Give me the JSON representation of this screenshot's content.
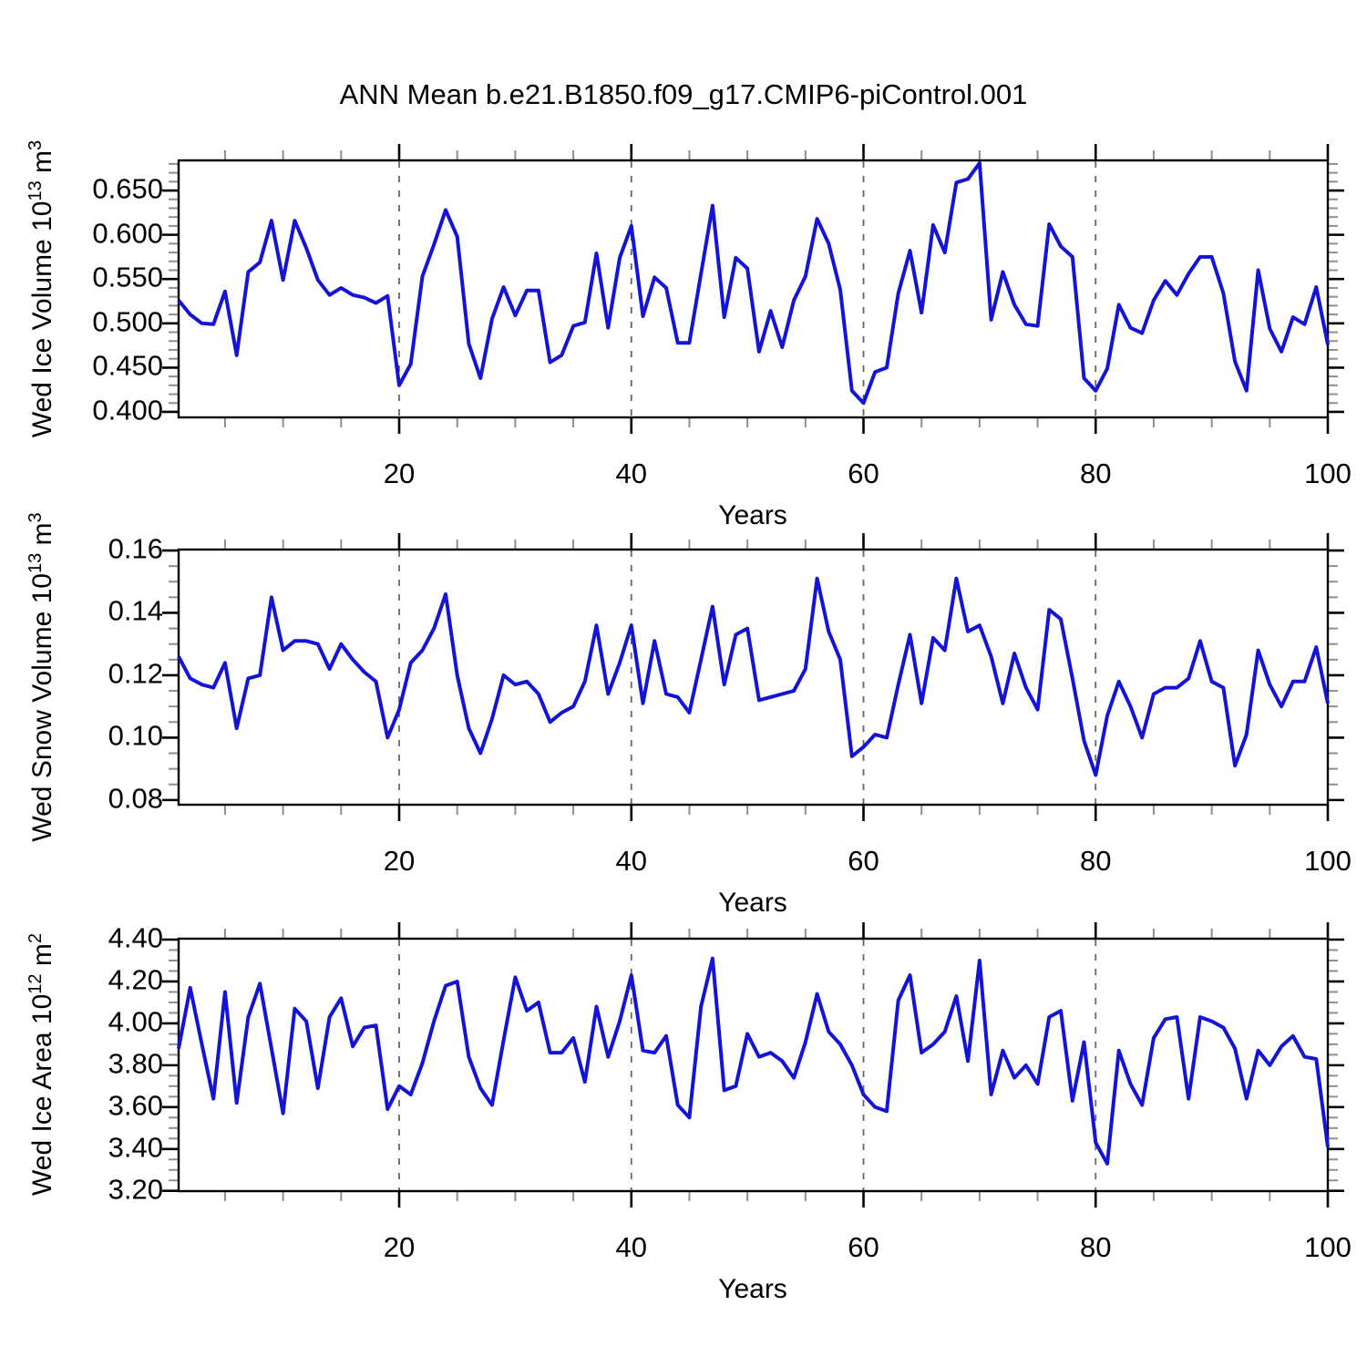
{
  "title": "ANN Mean b.e21.B1850.f09_g17.CMIP6-piControl.001",
  "line_color": "#1414d8",
  "frame_color": "#000000",
  "minor_tick_color": "#8f8f8f",
  "grid_color": "#666666",
  "chart_data": [
    {
      "type": "line",
      "title": "",
      "ylabel_base": "Wed Ice Volume 10",
      "ylabel_exp": "13",
      "ylabel_unit": " m",
      "ylabel_unit_exp": "3",
      "xlabel": "Years",
      "xlim": [
        1,
        100
      ],
      "ylim": [
        0.3938,
        0.684
      ],
      "x_major_ticks": [
        20,
        40,
        60,
        80,
        100
      ],
      "x_tick_labels": [
        "20",
        "40",
        "60",
        "80",
        "100"
      ],
      "x_minor_step": 5,
      "grid_x": [
        20,
        40,
        60,
        80
      ],
      "y_major_ticks": [
        0.4,
        0.45,
        0.5,
        0.55,
        0.6,
        0.65
      ],
      "y_tick_labels": [
        "0.400",
        "0.450",
        "0.500",
        "0.550",
        "0.600",
        "0.650"
      ],
      "y_minor_step": 0.01,
      "x_start": 1,
      "values": [
        0.526,
        0.51,
        0.5,
        0.499,
        0.536,
        0.464,
        0.558,
        0.569,
        0.616,
        0.549,
        0.616,
        0.585,
        0.549,
        0.532,
        0.54,
        0.532,
        0.529,
        0.523,
        0.531,
        0.43,
        0.454,
        0.553,
        0.589,
        0.628,
        0.598,
        0.477,
        0.438,
        0.505,
        0.541,
        0.509,
        0.537,
        0.537,
        0.456,
        0.464,
        0.497,
        0.501,
        0.579,
        0.495,
        0.574,
        0.61,
        0.508,
        0.552,
        0.54,
        0.478,
        0.478,
        0.556,
        0.633,
        0.507,
        0.574,
        0.562,
        0.468,
        0.514,
        0.473,
        0.526,
        0.553,
        0.618,
        0.59,
        0.538,
        0.424,
        0.41,
        0.445,
        0.45,
        0.534,
        0.582,
        0.512,
        0.611,
        0.58,
        0.659,
        0.663,
        0.681,
        0.504,
        0.558,
        0.521,
        0.499,
        0.497,
        0.612,
        0.587,
        0.575,
        0.438,
        0.424,
        0.449,
        0.521,
        0.495,
        0.489,
        0.526,
        0.548,
        0.532,
        0.556,
        0.575,
        0.575,
        0.534,
        0.457,
        0.424,
        0.56,
        0.494,
        0.468,
        0.507,
        0.499,
        0.541,
        0.476
      ]
    },
    {
      "type": "line",
      "title": "",
      "ylabel_base": "Wed Snow Volume 10",
      "ylabel_exp": "13",
      "ylabel_unit": " m",
      "ylabel_unit_exp": "3",
      "xlabel": "Years",
      "xlim": [
        1,
        100
      ],
      "ylim": [
        0.0785,
        0.1603
      ],
      "x_major_ticks": [
        20,
        40,
        60,
        80,
        100
      ],
      "x_tick_labels": [
        "20",
        "40",
        "60",
        "80",
        "100"
      ],
      "x_minor_step": 5,
      "grid_x": [
        20,
        40,
        60,
        80
      ],
      "y_major_ticks": [
        0.08,
        0.1,
        0.12,
        0.14,
        0.16
      ],
      "y_tick_labels": [
        "0.08",
        "0.10",
        "0.12",
        "0.14",
        "0.16"
      ],
      "y_minor_step": 0.005,
      "x_start": 1,
      "values": [
        0.126,
        0.119,
        0.117,
        0.116,
        0.124,
        0.103,
        0.119,
        0.12,
        0.145,
        0.128,
        0.131,
        0.131,
        0.13,
        0.122,
        0.13,
        0.125,
        0.121,
        0.118,
        0.1,
        0.109,
        0.124,
        0.128,
        0.135,
        0.146,
        0.12,
        0.103,
        0.095,
        0.106,
        0.12,
        0.117,
        0.118,
        0.114,
        0.105,
        0.108,
        0.11,
        0.118,
        0.136,
        0.114,
        0.124,
        0.136,
        0.111,
        0.131,
        0.114,
        0.113,
        0.108,
        0.125,
        0.142,
        0.117,
        0.133,
        0.135,
        0.112,
        0.113,
        0.114,
        0.115,
        0.122,
        0.151,
        0.134,
        0.125,
        0.094,
        0.097,
        0.101,
        0.1,
        0.117,
        0.133,
        0.111,
        0.132,
        0.128,
        0.151,
        0.134,
        0.136,
        0.126,
        0.111,
        0.127,
        0.116,
        0.109,
        0.141,
        0.138,
        0.119,
        0.099,
        0.088,
        0.107,
        0.118,
        0.11,
        0.1,
        0.114,
        0.116,
        0.116,
        0.119,
        0.131,
        0.118,
        0.116,
        0.091,
        0.101,
        0.128,
        0.117,
        0.11,
        0.118,
        0.118,
        0.129,
        0.111
      ]
    },
    {
      "type": "line",
      "title": "",
      "ylabel_base": "Wed Ice Area 10",
      "ylabel_exp": "12",
      "ylabel_unit": " m",
      "ylabel_unit_exp": "2",
      "xlabel": "Years",
      "xlim": [
        1,
        100
      ],
      "ylim": [
        3.1988,
        4.4044
      ],
      "x_major_ticks": [
        20,
        40,
        60,
        80,
        100
      ],
      "x_tick_labels": [
        "20",
        "40",
        "60",
        "80",
        "100"
      ],
      "x_minor_step": 5,
      "grid_x": [
        20,
        40,
        60,
        80
      ],
      "y_major_ticks": [
        3.2,
        3.4,
        3.6,
        3.8,
        4.0,
        4.2,
        4.4
      ],
      "y_tick_labels": [
        "3.20",
        "3.40",
        "3.60",
        "3.80",
        "4.00",
        "4.20",
        "4.40"
      ],
      "y_minor_step": 0.05,
      "x_start": 1,
      "values": [
        3.88,
        4.17,
        3.9,
        3.64,
        4.15,
        3.62,
        4.03,
        4.19,
        3.88,
        3.57,
        4.07,
        4.01,
        3.69,
        4.03,
        4.12,
        3.89,
        3.98,
        3.99,
        3.59,
        3.7,
        3.66,
        3.81,
        4.01,
        4.18,
        4.2,
        3.84,
        3.69,
        3.61,
        3.92,
        4.22,
        4.06,
        4.1,
        3.86,
        3.86,
        3.93,
        3.72,
        4.08,
        3.84,
        4.01,
        4.23,
        3.87,
        3.86,
        3.94,
        3.61,
        3.55,
        4.08,
        4.31,
        3.68,
        3.7,
        3.95,
        3.84,
        3.86,
        3.82,
        3.74,
        3.91,
        4.14,
        3.96,
        3.9,
        3.8,
        3.66,
        3.6,
        3.58,
        4.11,
        4.23,
        3.86,
        3.9,
        3.96,
        4.13,
        3.82,
        4.3,
        3.66,
        3.87,
        3.74,
        3.8,
        3.71,
        4.03,
        4.06,
        3.63,
        3.91,
        3.43,
        3.33,
        3.87,
        3.71,
        3.61,
        3.93,
        4.02,
        4.03,
        3.64,
        4.03,
        4.01,
        3.98,
        3.88,
        3.64,
        3.87,
        3.8,
        3.89,
        3.94,
        3.84,
        3.83,
        3.41
      ]
    }
  ]
}
